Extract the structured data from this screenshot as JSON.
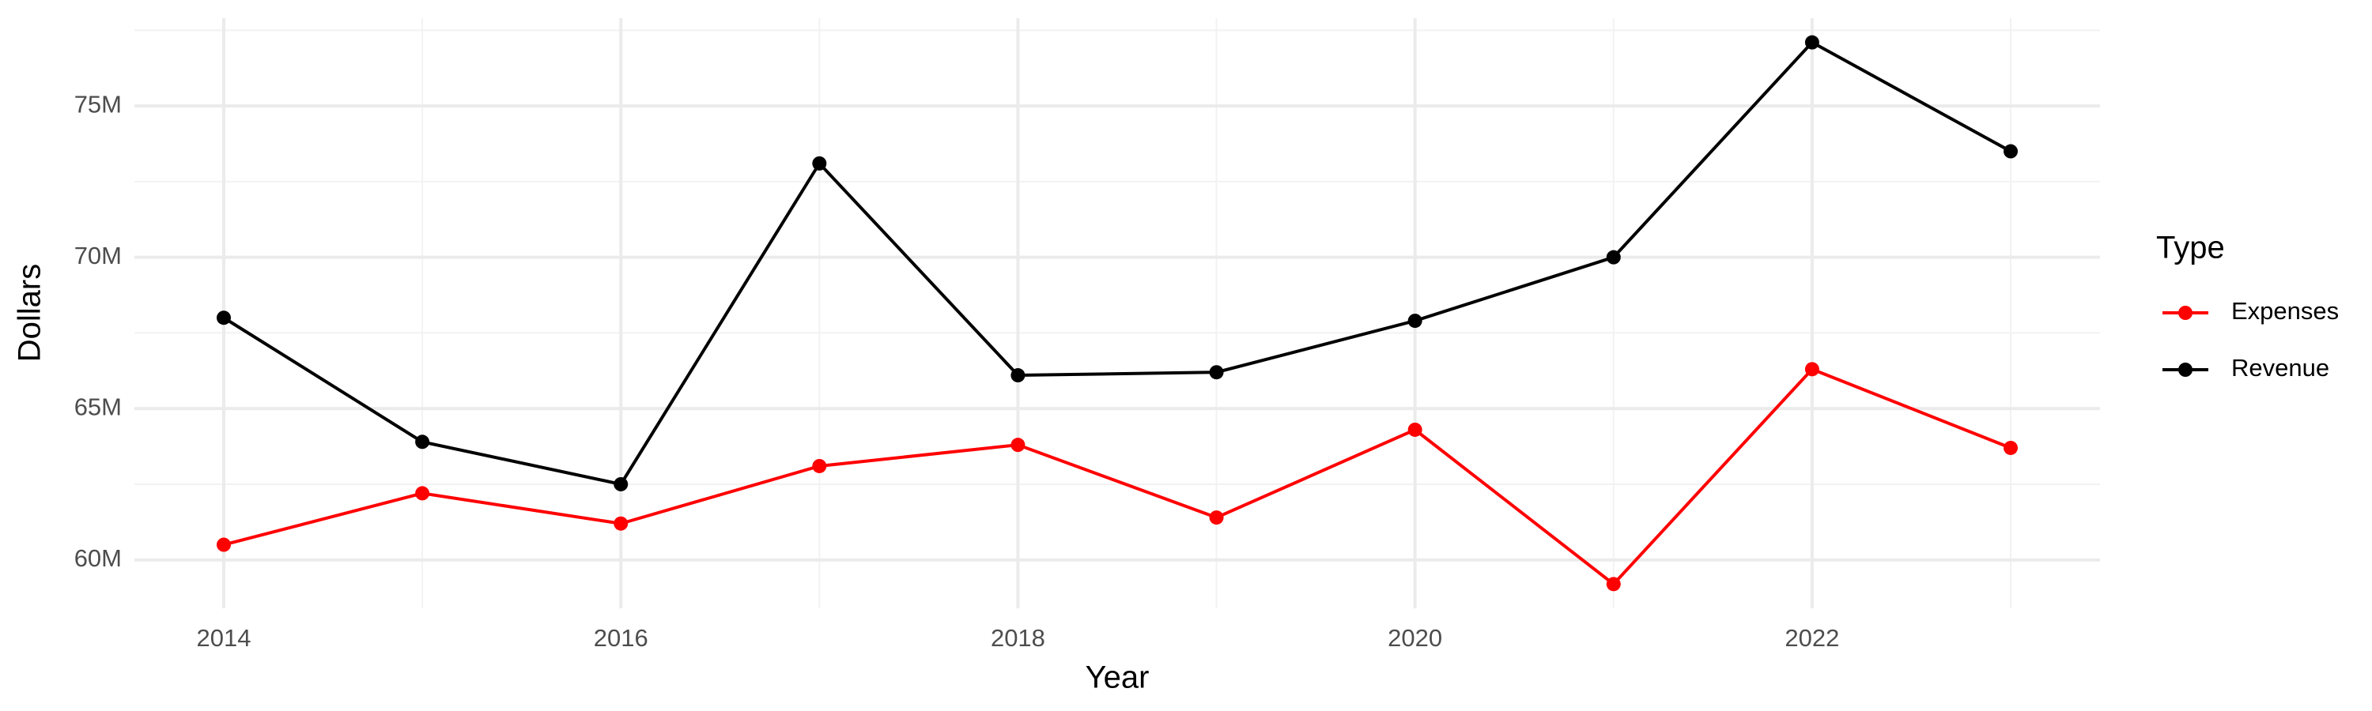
{
  "chart_data": {
    "type": "line",
    "x_label": "Year",
    "y_label": "Dollars",
    "legend_title": "Type",
    "x": [
      2014,
      2015,
      2016,
      2017,
      2018,
      2019,
      2020,
      2021,
      2022,
      2023
    ],
    "series": [
      {
        "name": "Expenses",
        "color": "#ff0000",
        "values": [
          60.5,
          62.2,
          61.2,
          63.1,
          63.8,
          61.4,
          64.3,
          59.2,
          66.3,
          63.7
        ]
      },
      {
        "name": "Revenue",
        "color": "#000000",
        "values": [
          68.0,
          63.9,
          62.5,
          73.1,
          66.1,
          66.2,
          67.9,
          70.0,
          77.1,
          73.5
        ]
      }
    ],
    "xlim": [
      2013.55,
      2023.45
    ],
    "xticks": [
      2014,
      2016,
      2018,
      2020,
      2022
    ],
    "ylim": [
      58.4,
      77.9
    ],
    "yticks": [
      {
        "value": 60,
        "label": "60M"
      },
      {
        "value": 65,
        "label": "65M"
      },
      {
        "value": 70,
        "label": "70M"
      },
      {
        "value": 75,
        "label": "75M"
      }
    ],
    "grid": true,
    "legend": "right"
  }
}
